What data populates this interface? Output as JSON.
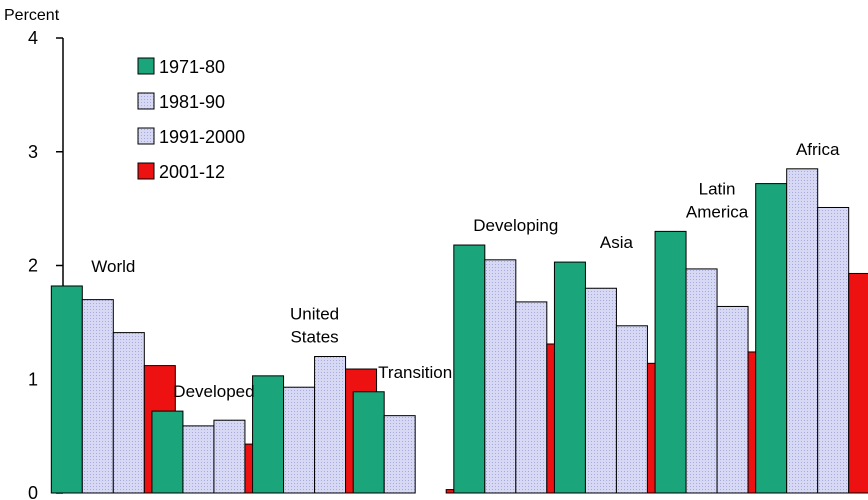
{
  "chart_data": {
    "type": "bar",
    "ylabel": "Percent",
    "ylim": [
      0,
      4
    ],
    "yticks": [
      0,
      1,
      2,
      3,
      4
    ],
    "grid": false,
    "legend_placement": "top-left",
    "categories": [
      [
        "World"
      ],
      [
        "Developed"
      ],
      [
        "United",
        "States"
      ],
      [
        "Transition"
      ],
      [
        "Developing"
      ],
      [
        "Asia"
      ],
      [
        "Latin",
        "America"
      ],
      [
        "Africa"
      ]
    ],
    "series": [
      {
        "name": "1971-80",
        "color": "#1aa57a",
        "values": [
          1.82,
          0.72,
          1.03,
          0.89,
          2.18,
          2.03,
          2.3,
          2.72
        ]
      },
      {
        "name": "1981-90",
        "color": "#c5c8ee",
        "values": [
          1.7,
          0.59,
          0.93,
          0.68,
          2.05,
          1.8,
          1.97,
          2.85
        ]
      },
      {
        "name": "1991-2000",
        "color": "#c5c8ee",
        "values": [
          1.41,
          0.64,
          1.2,
          0.0,
          1.68,
          1.47,
          1.64,
          2.51
        ]
      },
      {
        "name": "2001-12",
        "color": "#ee1111",
        "values": [
          1.12,
          0.43,
          1.09,
          0.03,
          1.31,
          1.14,
          1.24,
          1.93
        ]
      }
    ]
  }
}
